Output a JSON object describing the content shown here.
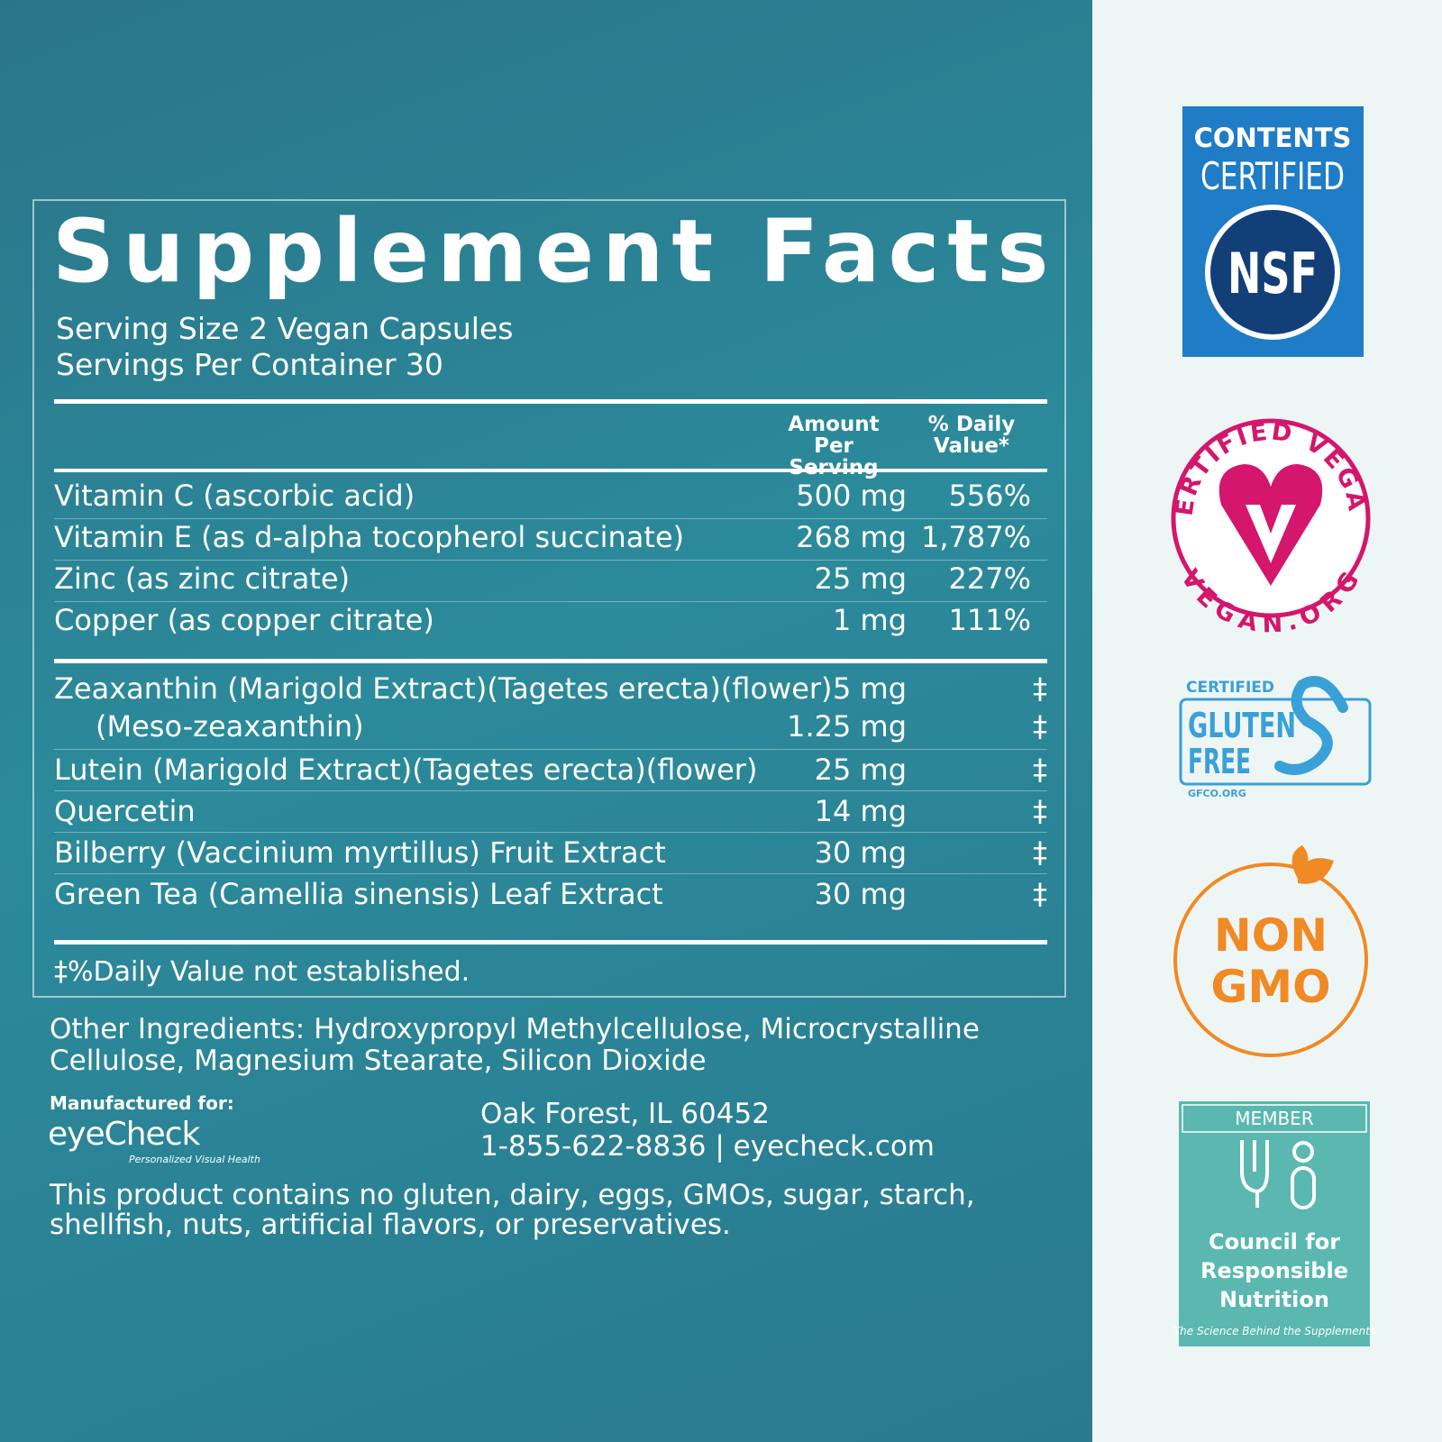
{
  "label": {
    "title": "Supplement Facts",
    "serving_size": "Serving Size 2 Vegan Capsules",
    "servings_per_container": "Servings Per Container 30",
    "headers": {
      "amount": "Amount Per Serving",
      "daily_value": "% Daily Value*"
    },
    "vitamins": [
      {
        "name": "Vitamin C (ascorbic acid)",
        "amount": "500 mg",
        "dv": "556%"
      },
      {
        "name": "Vitamin E (as d-alpha tocopherol succinate)",
        "amount": "268 mg",
        "dv": "1,787%"
      },
      {
        "name": "Zinc (as zinc citrate)",
        "amount": "25 mg",
        "dv": "227%"
      },
      {
        "name": "Copper (as copper citrate)",
        "amount": "1 mg",
        "dv": "111%"
      }
    ],
    "botanicals": [
      {
        "name": "Zeaxanthin (Marigold Extract)(Tagetes erecta)(flower)",
        "amount": "5 mg",
        "dv": "‡",
        "sub": {
          "name": "(Meso-zeaxanthin)",
          "amount": "1.25 mg",
          "dv": "‡"
        }
      },
      {
        "name": "Lutein (Marigold Extract)(Tagetes erecta)(flower)",
        "amount": "25 mg",
        "dv": "‡"
      },
      {
        "name": "Quercetin",
        "amount": "14 mg",
        "dv": "‡"
      },
      {
        "name": "Bilberry (Vaccinium myrtillus) Fruit Extract",
        "amount": "30 mg",
        "dv": "‡"
      },
      {
        "name": "Green Tea (Camellia sinensis) Leaf Extract",
        "amount": "30 mg",
        "dv": "‡"
      }
    ],
    "footnote": "‡%Daily Value not established."
  },
  "other_ingredients": [
    "Other Ingredients: Hydroxypropyl Methylcellulose, Microcrystalline",
    "Cellulose, Magnesium Stearate, Silicon Dioxide"
  ],
  "manufacturer": {
    "intro": "Manufactured for:",
    "brand": "eyeCheck",
    "tagline": "Personalized Visual Health",
    "address": "Oak Forest, IL 60452",
    "contact": "1-855-622-8836 | eyecheck.com"
  },
  "disclaimer": [
    "This product contains no gluten, dairy, eggs, GMOs, sugar, starch,",
    "shellfish, nuts, artificial flavors, or preservatives."
  ],
  "badges": {
    "nsf": {
      "line1": "CONTENTS",
      "line2": "CERTIFIED",
      "mark": "NSF"
    },
    "vegan": {
      "top": "CERTIFIED VEGAN",
      "bottom": "VEGAN.ORG"
    },
    "gluten": {
      "top": "CERTIFIED",
      "line1": "GLUTEN",
      "line2": "FREE",
      "site": "GFCO.ORG"
    },
    "gmo": {
      "line1": "NON",
      "line2": "GMO"
    },
    "crn": {
      "member": "MEMBER",
      "line1": "Council for",
      "line2": "Responsible",
      "line3": "Nutrition",
      "slogan": "The Science Behind the Supplements"
    }
  }
}
